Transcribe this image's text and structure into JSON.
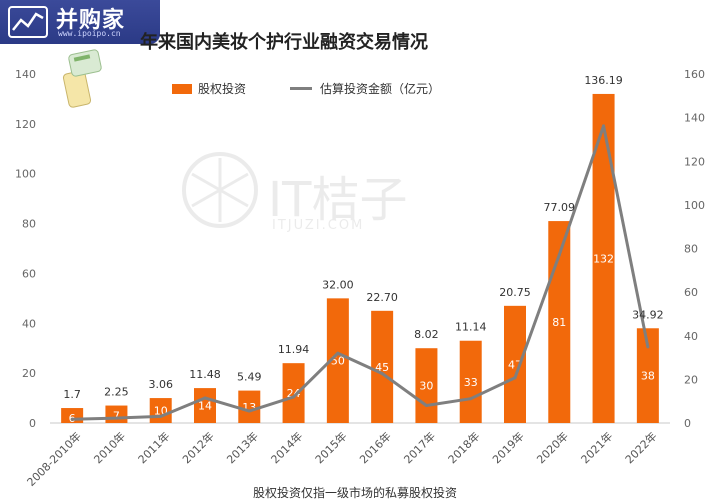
{
  "site_logo": {
    "name": "并购家",
    "url": "www.ipoipo.cn"
  },
  "watermark": {
    "text": "IT桔子",
    "sub": "ITJUZI.COM"
  },
  "chart_data": {
    "type": "bar",
    "title": "年来国内美妆个护行业融资交易情况",
    "footnote": "股权投资仅指一级市场的私募股权投资",
    "categories": [
      "2008-2010年",
      "2010年",
      "2011年",
      "2012年",
      "2013年",
      "2014年",
      "2015年",
      "2016年",
      "2017年",
      "2018年",
      "2019年",
      "2020年",
      "2021年",
      "2022年"
    ],
    "series": [
      {
        "name": "股权投资",
        "kind": "bar",
        "axis": "left",
        "color": "#f2690b",
        "values": [
          6,
          7,
          10,
          14,
          13,
          24,
          50,
          45,
          30,
          33,
          47,
          81,
          132,
          38
        ]
      },
      {
        "name": "估算投资金额（亿元）",
        "kind": "line",
        "axis": "right",
        "color": "#7f7f7f",
        "values": [
          1.7,
          2.25,
          3.06,
          11.48,
          5.49,
          11.94,
          32.0,
          22.7,
          8.02,
          11.14,
          20.75,
          77.09,
          136.19,
          34.92
        ],
        "labels": [
          "1.7",
          "2.25",
          "3.06",
          "11.48",
          "5.49",
          "11.94",
          "32.00",
          "22.70",
          "8.02",
          "11.14",
          "20.75",
          "77.09",
          "136.19",
          "34.92"
        ]
      }
    ],
    "ylim": [
      0,
      140
    ],
    "yticks": [
      0,
      20,
      40,
      60,
      80,
      100,
      120,
      140
    ],
    "y2lim": [
      0,
      160
    ],
    "y2ticks": [
      0,
      20,
      40,
      60,
      80,
      100,
      120,
      140,
      160
    ],
    "legend_position": "top-left",
    "grid": false
  }
}
